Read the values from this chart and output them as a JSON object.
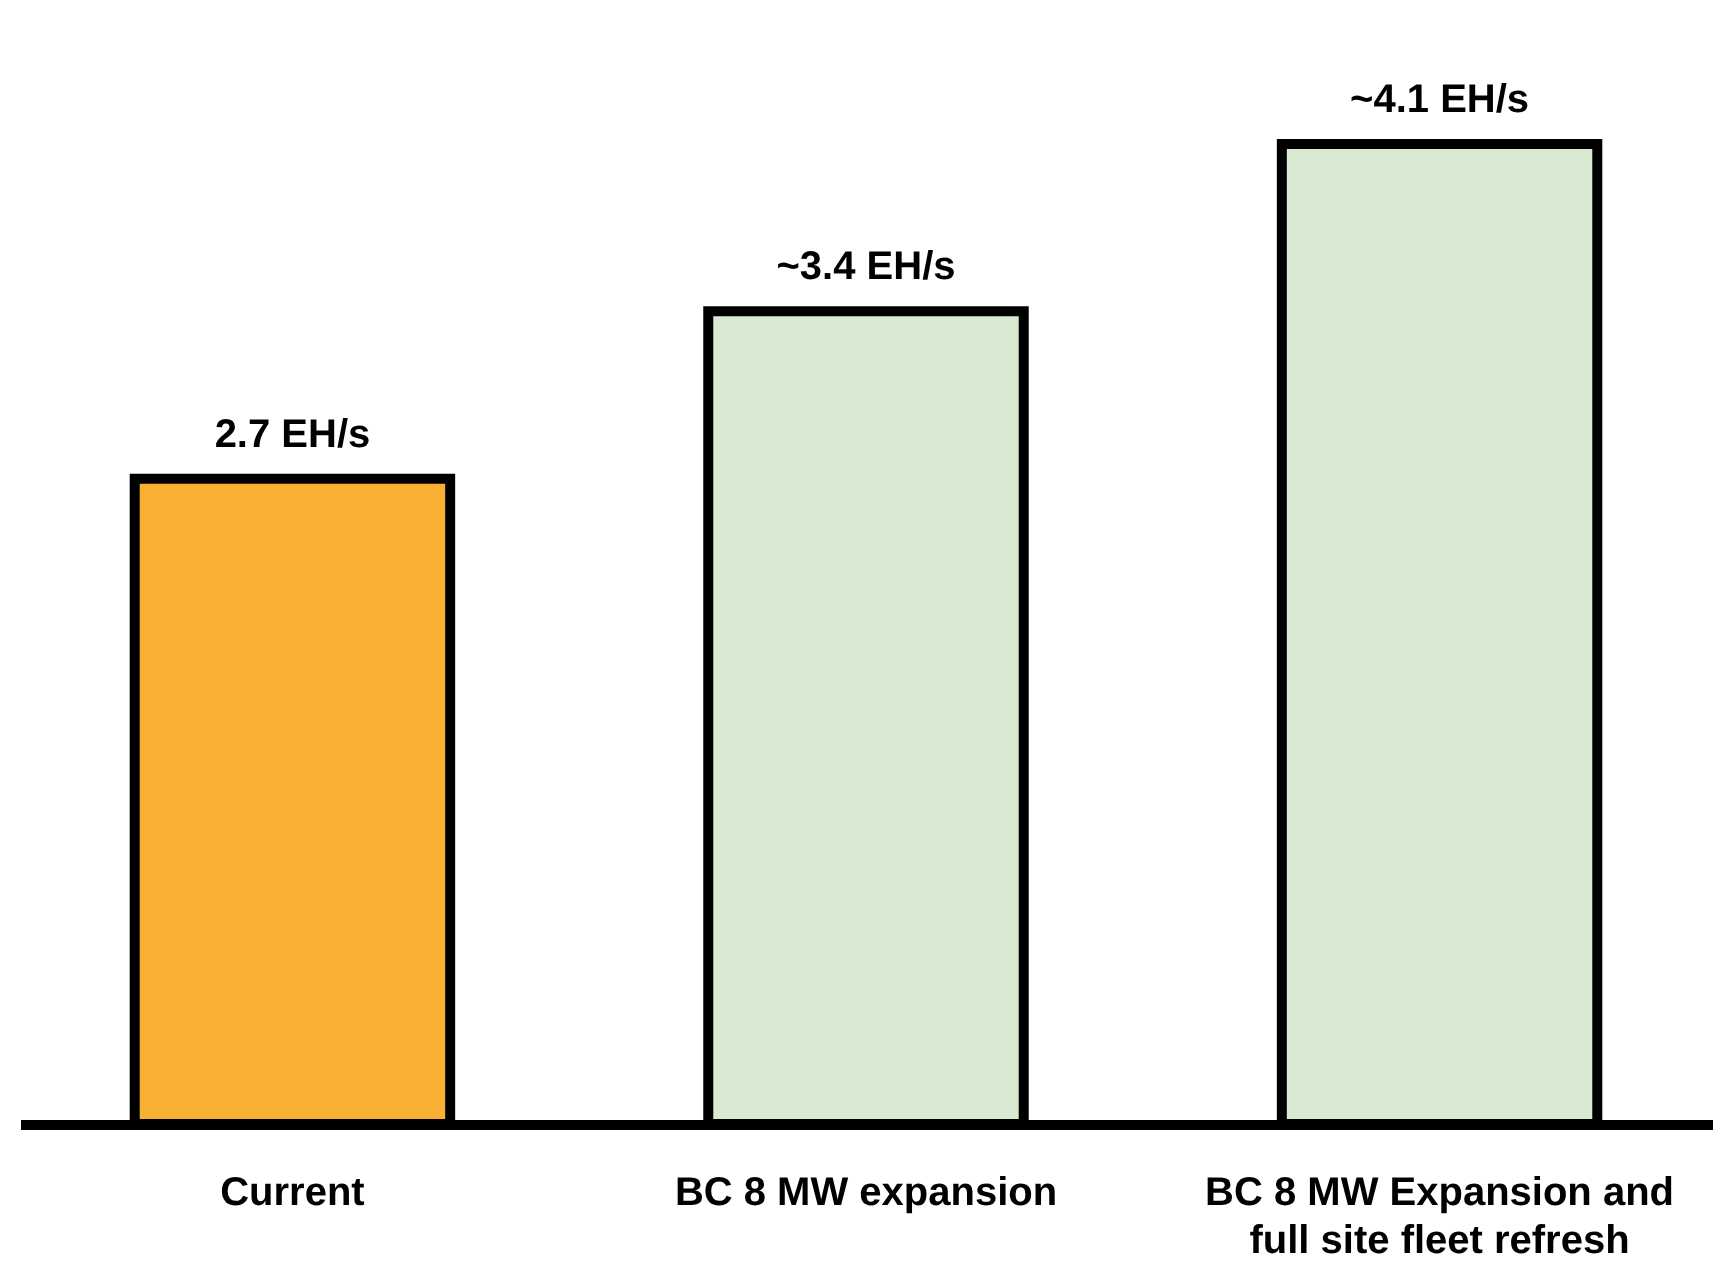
{
  "chart_data": {
    "type": "bar",
    "categories": [
      "Current",
      "BC 8 MW expansion",
      "BC 8 MW Expansion and full site fleet refresh"
    ],
    "values": [
      2.7,
      3.4,
      4.1
    ],
    "colors": [
      "#f7b032",
      "#d9ead3",
      "#d9ead3"
    ],
    "value_labels": [
      "2.7 EH/s",
      "~3.4 EH/s",
      "~4.1 EH/s"
    ],
    "tick_labels": "x"
  }
}
